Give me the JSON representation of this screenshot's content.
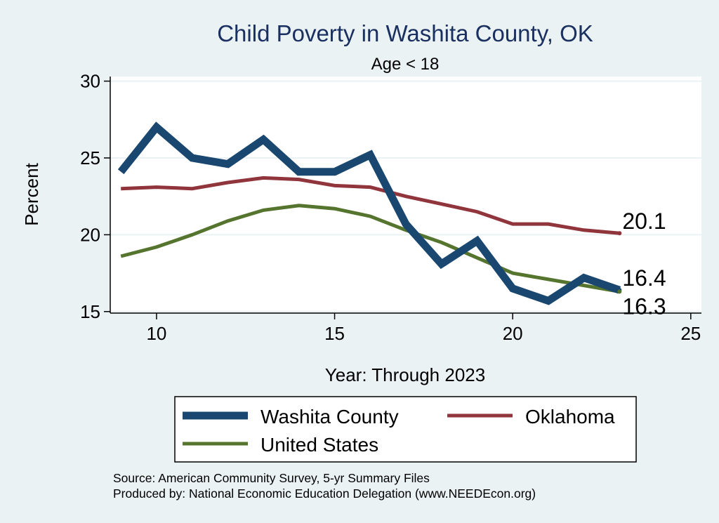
{
  "chart_data": {
    "type": "line",
    "title": "Child Poverty in Washita County, OK",
    "subtitle": "Age < 18",
    "xlabel": "Year: Through 2023",
    "ylabel": "Percent",
    "xlim": [
      8.7,
      25.3
    ],
    "ylim": [
      14.9,
      30.3
    ],
    "xticks": [
      10,
      15,
      20,
      25
    ],
    "yticks": [
      15,
      20,
      25,
      30
    ],
    "grid": true,
    "legend_position": "bottom",
    "x": [
      9,
      10,
      11,
      12,
      13,
      14,
      15,
      16,
      17,
      18,
      19,
      20,
      21,
      22,
      23
    ],
    "series": [
      {
        "name": "Washita County",
        "values": [
          24.1,
          27.0,
          25.0,
          24.6,
          26.2,
          24.1,
          24.1,
          25.2,
          20.7,
          18.1,
          19.6,
          16.5,
          15.7,
          17.2,
          16.4
        ],
        "color": "#1a476f",
        "end_label": "16.4"
      },
      {
        "name": "Oklahoma",
        "values": [
          23.0,
          23.1,
          23.0,
          23.4,
          23.7,
          23.6,
          23.2,
          23.1,
          22.5,
          22.0,
          21.5,
          20.7,
          20.7,
          20.3,
          20.1
        ],
        "color": "#90353b",
        "end_label": "20.1"
      },
      {
        "name": "United States",
        "values": [
          18.6,
          19.2,
          20.0,
          20.9,
          21.6,
          21.9,
          21.7,
          21.2,
          20.3,
          19.5,
          18.5,
          17.5,
          17.1,
          16.7,
          16.3
        ],
        "color": "#55752f",
        "end_label": "16.3"
      }
    ],
    "notes": [
      "Source: American Community Survey, 5-yr Summary Files",
      "Produced by: National Economic Education Delegation (www.NEEDEcon.org)"
    ]
  }
}
